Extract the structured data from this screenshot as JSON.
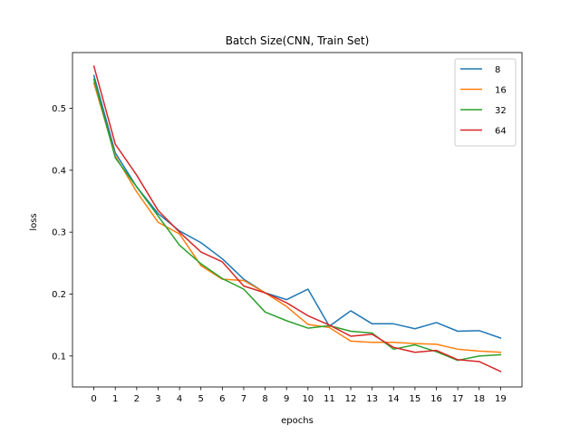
{
  "chart_data": {
    "type": "line",
    "title": "Batch Size(CNN, Train Set)",
    "xlabel": "epochs",
    "ylabel": "loss",
    "x": [
      0,
      1,
      2,
      3,
      4,
      5,
      6,
      7,
      8,
      9,
      10,
      11,
      12,
      13,
      14,
      15,
      16,
      17,
      18,
      19
    ],
    "x_ticks": [
      "0",
      "1",
      "2",
      "3",
      "4",
      "5",
      "6",
      "7",
      "8",
      "9",
      "10",
      "11",
      "12",
      "13",
      "14",
      "15",
      "16",
      "17",
      "18",
      "19"
    ],
    "y_ticks": [
      "0.1",
      "0.2",
      "0.3",
      "0.4",
      "0.5"
    ],
    "y_tick_values": [
      0.1,
      0.2,
      0.3,
      0.4,
      0.5
    ],
    "xlim": [
      -1,
      20
    ],
    "ylim": [
      0.05,
      0.59
    ],
    "grid": false,
    "legend_position": "top-right",
    "series": [
      {
        "name": "8",
        "color": "#1f77b4",
        "values": [
          0.553,
          0.428,
          0.373,
          0.33,
          0.302,
          0.283,
          0.257,
          0.224,
          0.202,
          0.191,
          0.208,
          0.148,
          0.173,
          0.152,
          0.152,
          0.144,
          0.154,
          0.14,
          0.141,
          0.129
        ]
      },
      {
        "name": "16",
        "color": "#ff7f0e",
        "values": [
          0.541,
          0.423,
          0.365,
          0.316,
          0.297,
          0.246,
          0.224,
          0.222,
          0.202,
          0.18,
          0.151,
          0.146,
          0.124,
          0.122,
          0.122,
          0.12,
          0.119,
          0.111,
          0.108,
          0.106
        ]
      },
      {
        "name": "32",
        "color": "#2ca02c",
        "values": [
          0.547,
          0.42,
          0.373,
          0.326,
          0.279,
          0.249,
          0.225,
          0.208,
          0.171,
          0.157,
          0.145,
          0.149,
          0.14,
          0.137,
          0.111,
          0.118,
          0.107,
          0.093,
          0.1,
          0.102
        ]
      },
      {
        "name": "64",
        "color": "#d62728",
        "values": [
          0.568,
          0.442,
          0.392,
          0.335,
          0.3,
          0.268,
          0.252,
          0.213,
          0.202,
          0.186,
          0.165,
          0.15,
          0.132,
          0.135,
          0.114,
          0.106,
          0.109,
          0.094,
          0.091,
          0.075
        ]
      }
    ]
  }
}
